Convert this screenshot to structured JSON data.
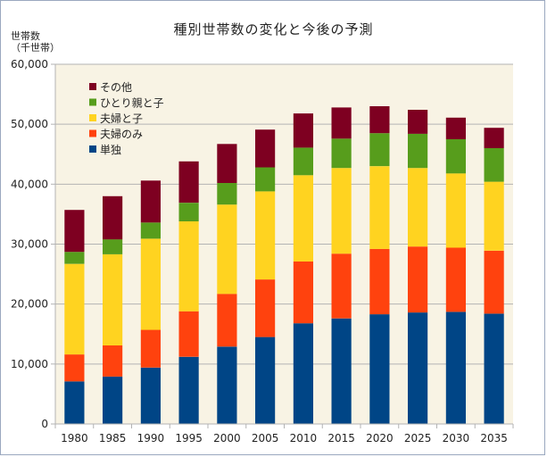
{
  "chart_data": {
    "type": "bar",
    "stacked": true,
    "title": "種別世帯数の変化と今後の予測",
    "ylabel": [
      "世帯数",
      "（千世帯）"
    ],
    "xlabel": "",
    "ylim": [
      0,
      60000
    ],
    "yticks": [
      "0",
      "10,000",
      "20,000",
      "30,000",
      "40,000",
      "50,000",
      "60,000"
    ],
    "grid": true,
    "legend_position": "top-left",
    "categories": [
      "1980",
      "1985",
      "1990",
      "1995",
      "2000",
      "2005",
      "2010",
      "2015",
      "2020",
      "2025",
      "2030",
      "2035"
    ],
    "series": [
      {
        "name": "単独",
        "color": "#004586",
        "values": [
          7100,
          7900,
          9400,
          11200,
          12900,
          14500,
          16800,
          17600,
          18300,
          18600,
          18700,
          18400
        ]
      },
      {
        "name": "夫婦のみ",
        "color": "#ff420e",
        "values": [
          4500,
          5200,
          6300,
          7600,
          8800,
          9600,
          10300,
          10800,
          10900,
          11000,
          10700,
          10500
        ]
      },
      {
        "name": "夫婦と子",
        "color": "#ffd320",
        "values": [
          15100,
          15200,
          15200,
          15000,
          14900,
          14700,
          14400,
          14300,
          13800,
          13100,
          12400,
          11500
        ]
      },
      {
        "name": "ひとり親と子",
        "color": "#579d1c",
        "values": [
          2000,
          2500,
          2700,
          3100,
          3600,
          4000,
          4600,
          4900,
          5500,
          5700,
          5700,
          5600
        ]
      },
      {
        "name": "その他",
        "color": "#7e0021",
        "values": [
          7000,
          7200,
          7000,
          6900,
          6500,
          6300,
          5700,
          5200,
          4500,
          4000,
          3600,
          3400
        ]
      }
    ]
  }
}
